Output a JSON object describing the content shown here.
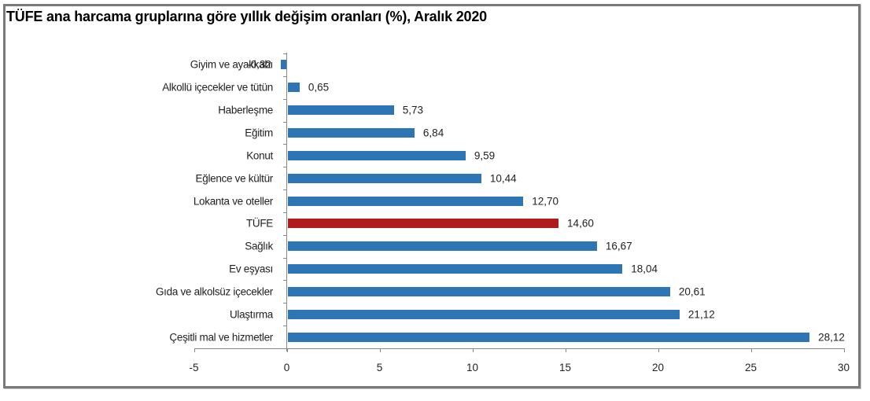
{
  "chart_data": {
    "type": "bar",
    "orientation": "horizontal",
    "title": "TÜFE ana harcama gruplarına göre yıllık değişim oranları (%), Aralık 2020",
    "xlabel": "",
    "ylabel": "",
    "xlim": [
      -5,
      30
    ],
    "xticks": [
      "-5",
      "0",
      "5",
      "10",
      "15",
      "20",
      "25",
      "30"
    ],
    "grid": false,
    "legend": null,
    "categories": [
      "Giyim ve ayakkabı",
      "Alkollü içecekler ve tütün",
      "Haberleşme",
      "Eğitim",
      "Konut",
      "Eğlence ve kültür",
      "Lokanta ve oteller",
      "TÜFE",
      "Sağlık",
      "Ev eşyası",
      "Gıda ve alkolsüz içecekler",
      "Ulaştırma",
      "Çeşitli mal ve hizmetler"
    ],
    "values": [
      -0.32,
      0.65,
      5.73,
      6.84,
      9.59,
      10.44,
      12.7,
      14.6,
      16.67,
      18.04,
      20.61,
      21.12,
      28.12
    ],
    "value_labels": [
      "-0,32",
      "0,65",
      "5,73",
      "6,84",
      "9,59",
      "10,44",
      "12,70",
      "14,60",
      "16,67",
      "18,04",
      "20,61",
      "21,12",
      "28,12"
    ],
    "colors": {
      "default": "#2e75b6",
      "highlight": "#b01c1c",
      "highlight_category": "TÜFE"
    }
  }
}
